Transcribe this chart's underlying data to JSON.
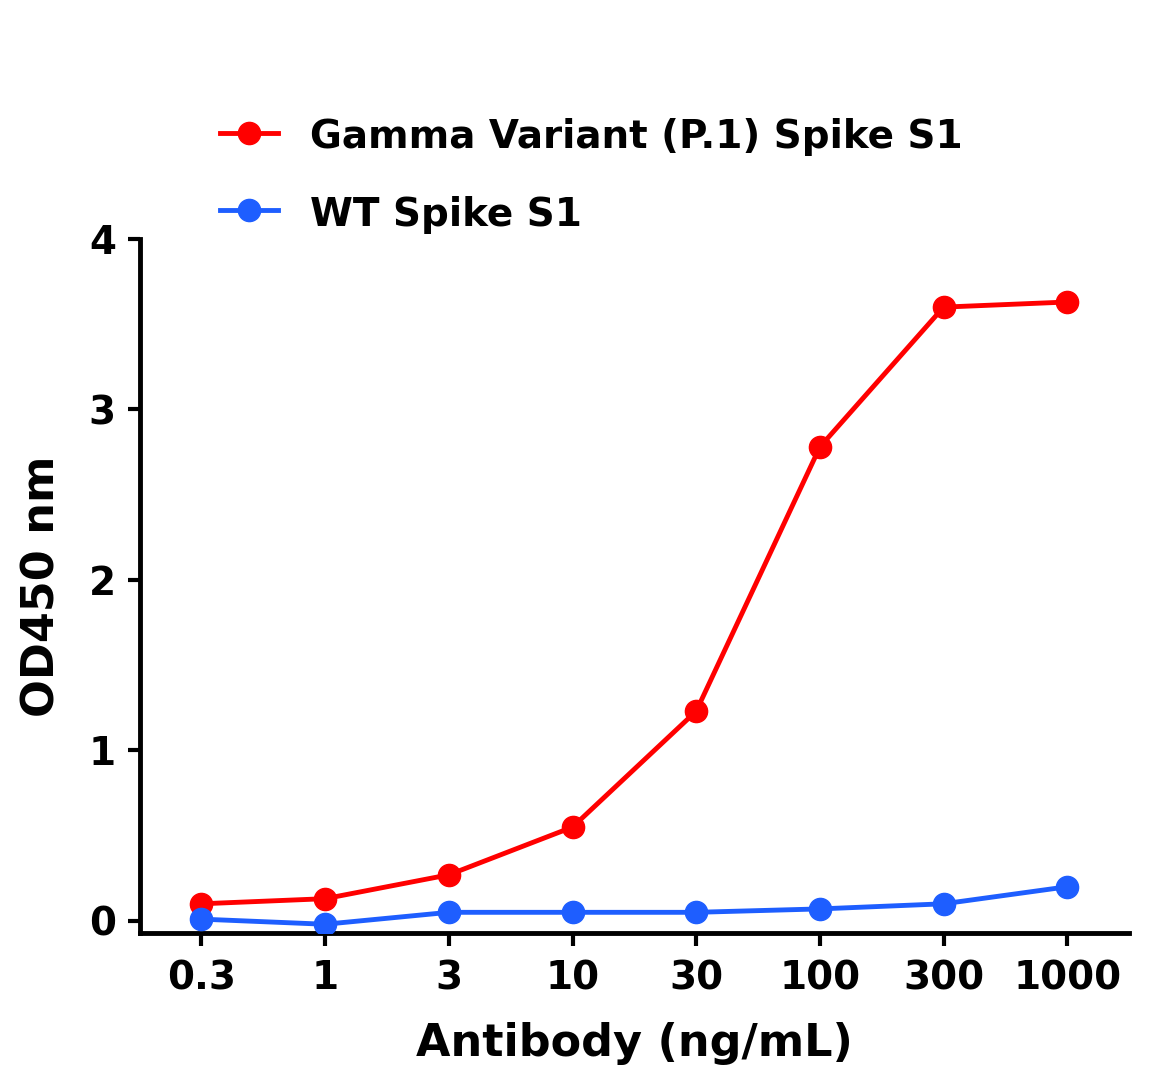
{
  "x_labels": [
    "0.3",
    "1",
    "3",
    "10",
    "30",
    "100",
    "300",
    "1000"
  ],
  "x_values": [
    0.3,
    1,
    3,
    10,
    30,
    100,
    300,
    1000
  ],
  "gamma_y": [
    0.1,
    0.13,
    0.27,
    0.55,
    1.23,
    2.78,
    3.6,
    3.63
  ],
  "wt_y": [
    0.01,
    -0.02,
    0.05,
    0.05,
    0.05,
    0.07,
    0.1,
    0.2
  ],
  "gamma_color": "#FF0000",
  "wt_color": "#1E5EFF",
  "gamma_label": "Gamma Variant (P.1) Spike S1",
  "wt_label": "WT Spike S1",
  "ylabel": "OD450 nm",
  "xlabel": "Antibody (ng/mL)",
  "ylim": [
    -0.07,
    4.0
  ],
  "yticks": [
    0,
    1,
    2,
    3,
    4
  ],
  "line_width": 3.5,
  "marker_size": 16,
  "legend_fontsize": 28,
  "axis_label_fontsize": 32,
  "tick_fontsize": 28,
  "background_color": "#ffffff"
}
